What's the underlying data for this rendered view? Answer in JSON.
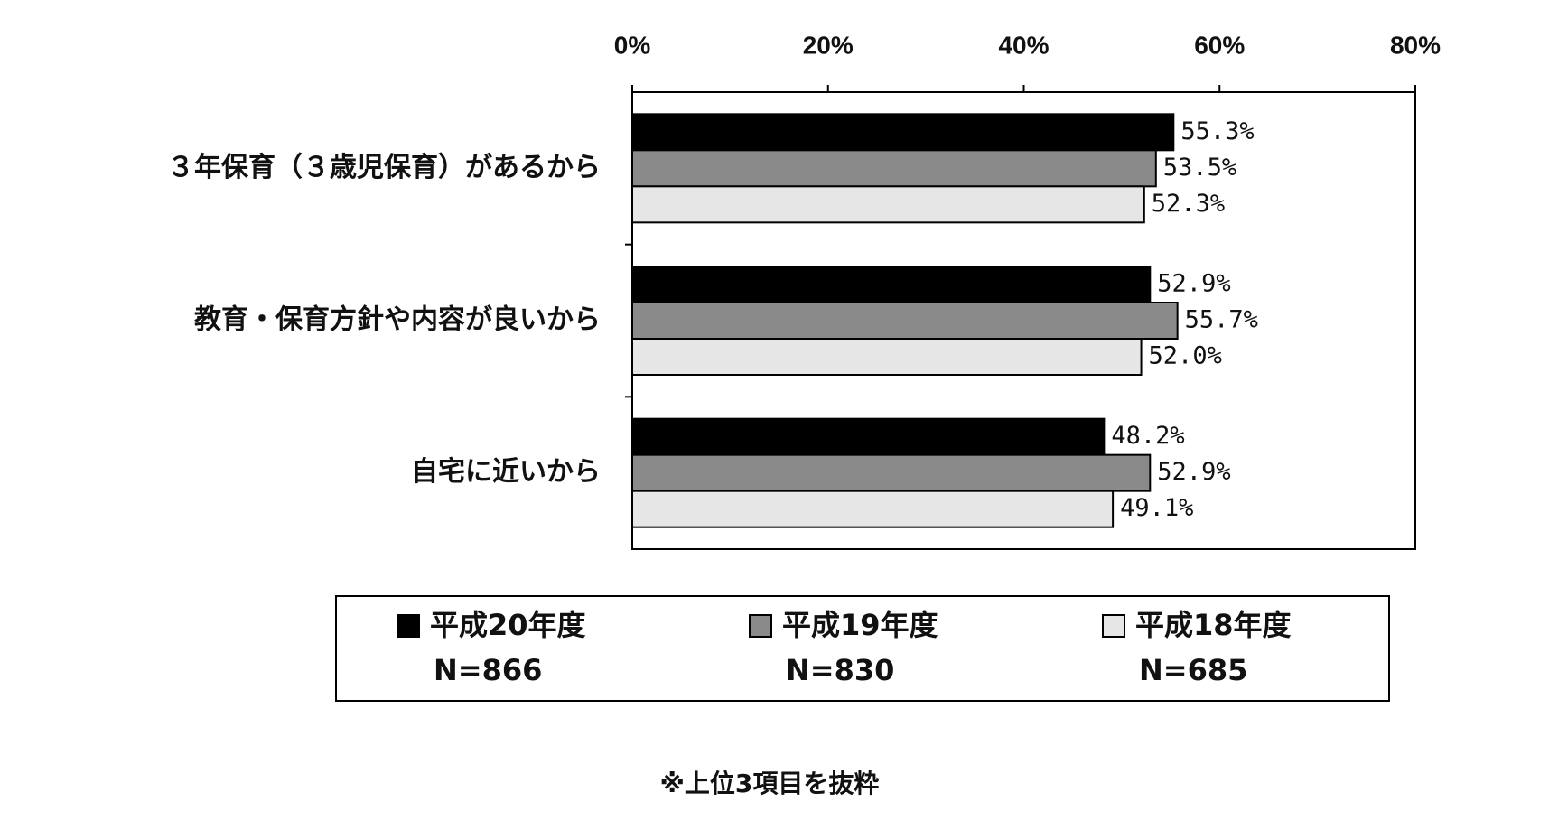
{
  "chart_data": {
    "type": "bar",
    "orientation": "horizontal",
    "categories": [
      "３年保育（３歳児保育）があるから",
      "教育・保育方針や内容が良いから",
      "自宅に近いから"
    ],
    "series": [
      {
        "name": "平成20年度",
        "n_label": "N=866",
        "color": "#000000",
        "values": [
          55.3,
          52.9,
          48.2
        ],
        "value_labels": [
          "55.3%",
          "52.9%",
          "48.2%"
        ]
      },
      {
        "name": "平成19年度",
        "n_label": "N=830",
        "color": "#8a8a8a",
        "values": [
          53.5,
          55.7,
          52.9
        ],
        "value_labels": [
          "53.5%",
          "55.7%",
          "52.9%"
        ]
      },
      {
        "name": "平成18年度",
        "n_label": "N=685",
        "color": "#e6e6e6",
        "values": [
          52.3,
          52.0,
          49.1
        ],
        "value_labels": [
          "52.3%",
          "52.0%",
          "49.1%"
        ]
      }
    ],
    "xlim": [
      0,
      80
    ],
    "xticks": [
      {
        "value": 0,
        "label": "0%"
      },
      {
        "value": 20,
        "label": "20%"
      },
      {
        "value": 40,
        "label": "40%"
      },
      {
        "value": 60,
        "label": "60%"
      },
      {
        "value": 80,
        "label": "80%"
      }
    ],
    "grid": false,
    "legend_position": "bottom",
    "footnote": "※上位3項目を抜粋"
  }
}
